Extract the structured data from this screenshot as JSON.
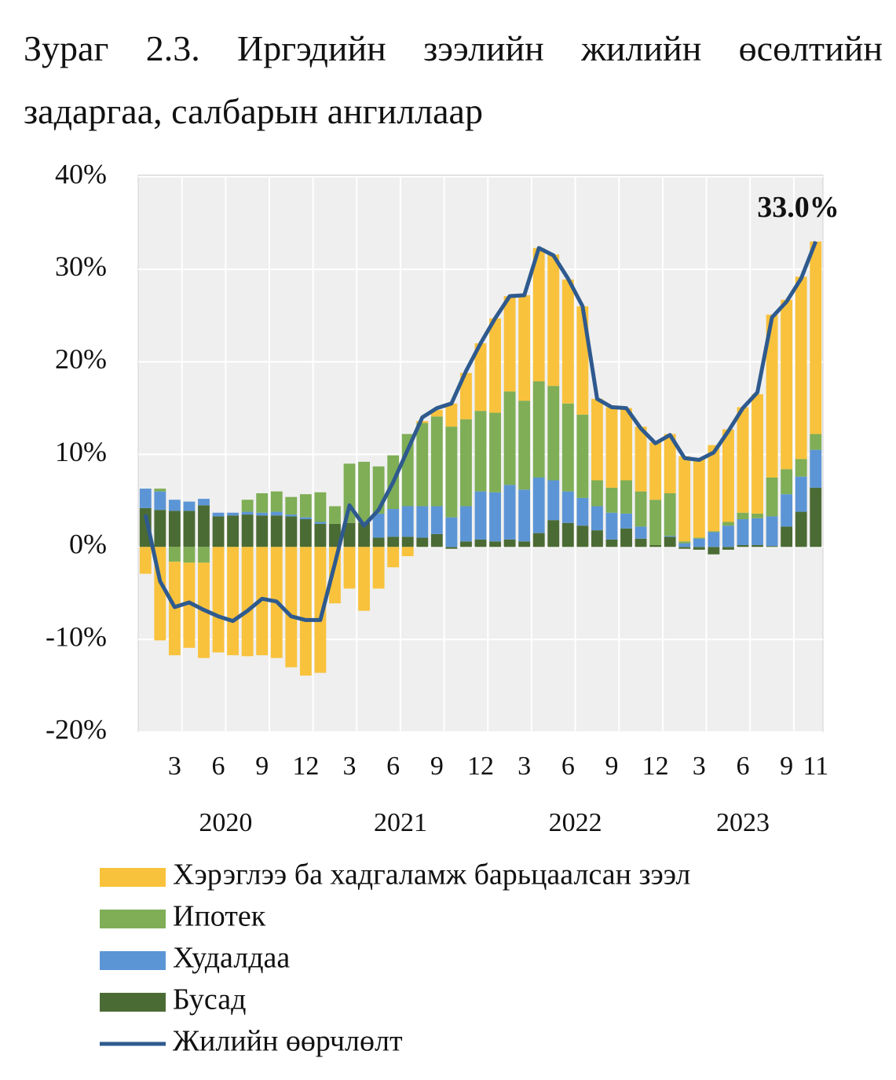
{
  "chart_data": {
    "type": "bar",
    "stacked": true,
    "title": "Зураг 2.3. Иргэдийн зээлийн жилийн өсөлтийн задаргаа, салбарын ангиллаар",
    "categories": [
      null,
      null,
      "3",
      null,
      null,
      "6",
      null,
      null,
      "9",
      null,
      null,
      "12",
      null,
      null,
      "3",
      null,
      null,
      "6",
      null,
      null,
      "9",
      null,
      null,
      "12",
      null,
      null,
      "3",
      null,
      null,
      "6",
      null,
      null,
      "9",
      null,
      null,
      "12",
      null,
      null,
      "3",
      null,
      null,
      "6",
      null,
      null,
      "9",
      null,
      "11"
    ],
    "years": [
      "2020",
      "2021",
      "2022",
      "2023"
    ],
    "ylim": [
      -20,
      40
    ],
    "yticks": [
      {
        "value": -20,
        "label": "-20%"
      },
      {
        "value": -10,
        "label": "-10%"
      },
      {
        "value": 0,
        "label": "0%"
      },
      {
        "value": 10,
        "label": "10%"
      },
      {
        "value": 20,
        "label": "20%"
      },
      {
        "value": 30,
        "label": "30%"
      },
      {
        "value": 40,
        "label": "40%"
      }
    ],
    "grid": true,
    "series": [
      {
        "name": "Хэрэглээ ба хадгаламж барьцаалсан зээл",
        "type": "bar",
        "color": "#F9C23C",
        "values": [
          -2.9,
          -10.1,
          -10.1,
          -9.2,
          -10.3,
          -11.4,
          -11.7,
          -11.8,
          -11.7,
          -12.0,
          -13.0,
          -13.9,
          -13.6,
          -6.1,
          -4.5,
          -6.9,
          -4.5,
          -2.2,
          -1.0,
          0.2,
          0.7,
          2.5,
          5.0,
          7.3,
          10.2,
          10.3,
          11.4,
          14.4,
          14.2,
          13.4,
          11.7,
          8.8,
          8.7,
          7.8,
          7.0,
          6.2,
          6.4,
          9.2,
          8.6,
          9.3,
          10.0,
          11.4,
          12.9,
          17.6,
          18.3,
          19.7,
          20.8
        ]
      },
      {
        "name": "Ипотек",
        "type": "bar",
        "color": "#7FAE56",
        "values": [
          0,
          0.3,
          -1.6,
          -1.7,
          -1.7,
          0,
          0,
          1.3,
          2.1,
          2.2,
          1.9,
          2.5,
          3.2,
          1.9,
          6.4,
          6.6,
          5.1,
          5.8,
          7.8,
          9.0,
          9.7,
          9.8,
          9.4,
          8.7,
          8.6,
          10.1,
          9.6,
          10.4,
          10.2,
          9.5,
          9.0,
          2.8,
          2.7,
          3.6,
          3.8,
          4.9,
          4.6,
          0.2,
          0.1,
          0.1,
          0.4,
          0.7,
          0.5,
          4.2,
          2.7,
          1.9,
          1.7
        ]
      },
      {
        "name": "Худалдаа",
        "type": "bar",
        "color": "#5C95D6",
        "values": [
          2.1,
          2.0,
          1.2,
          1.0,
          0.7,
          0.4,
          0.3,
          0.3,
          0.3,
          0.4,
          0.2,
          0.2,
          0.2,
          0,
          0,
          0,
          2.6,
          3.0,
          3.3,
          3.4,
          3.0,
          3.2,
          3.8,
          5.2,
          5.3,
          5.9,
          5.6,
          6.0,
          4.3,
          3.4,
          3.0,
          2.6,
          2.9,
          1.6,
          1.3,
          0,
          0.1,
          0.4,
          0.9,
          1.6,
          2.3,
          2.8,
          2.9,
          3.2,
          3.5,
          3.8,
          4.1
        ]
      },
      {
        "name": "Бусад",
        "type": "bar",
        "color": "#4B6B34",
        "values": [
          4.2,
          4.0,
          3.9,
          3.9,
          4.5,
          3.3,
          3.4,
          3.5,
          3.4,
          3.4,
          3.3,
          3.0,
          2.5,
          2.5,
          2.6,
          2.6,
          1.0,
          1.1,
          1.1,
          1.0,
          1.4,
          -0.2,
          0.6,
          0.8,
          0.6,
          0.8,
          0.6,
          1.5,
          2.9,
          2.6,
          2.3,
          1.8,
          0.8,
          2.0,
          0.9,
          0.2,
          1.1,
          -0.2,
          -0.3,
          -0.8,
          -0.3,
          0.2,
          0.2,
          0.1,
          2.2,
          3.8,
          6.4
        ]
      },
      {
        "name": "Жилийн өөрчлөлт",
        "type": "line",
        "color": "#2E5A8E",
        "values": [
          3.5,
          -3.7,
          -6.5,
          -6.0,
          -6.8,
          -7.5,
          -8.0,
          -6.9,
          -5.6,
          -5.9,
          -7.5,
          -7.9,
          -7.9,
          -1.8,
          4.5,
          2.3,
          4.0,
          7.0,
          10.5,
          14.0,
          15.0,
          15.5,
          19.0,
          22.0,
          24.7,
          27.1,
          27.2,
          32.3,
          31.5,
          29.0,
          26.0,
          16.0,
          15.1,
          15.0,
          12.8,
          11.2,
          12.1,
          9.6,
          9.4,
          10.2,
          12.5,
          15.0,
          16.7,
          24.8,
          26.5,
          29.0,
          33.0
        ],
        "value_labels": [
          null,
          null,
          null,
          null,
          null,
          null,
          null,
          null,
          null,
          null,
          null,
          null,
          null,
          null,
          null,
          null,
          null,
          null,
          null,
          null,
          null,
          null,
          null,
          null,
          null,
          null,
          null,
          null,
          null,
          null,
          null,
          null,
          null,
          null,
          null,
          null,
          null,
          null,
          null,
          null,
          null,
          null,
          null,
          null,
          null,
          null,
          "33.0%"
        ]
      }
    ]
  }
}
